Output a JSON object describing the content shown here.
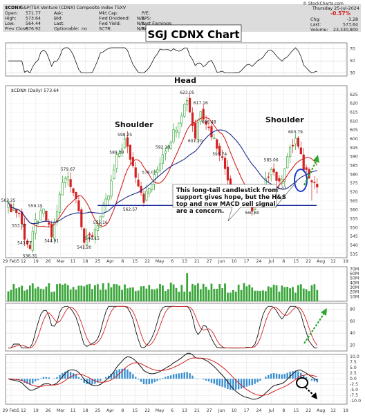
{
  "header": {
    "symbol": "$CDNX",
    "name": "S&P/TSX Venture (CDNX) Composite Index  TSXV",
    "watermark": "© StockCharts.com",
    "date": "Thursday 25-Jul-2024",
    "change_pct": "-0.57%",
    "fields": [
      {
        "label": "Open:",
        "value": "571.77"
      },
      {
        "label": "High:",
        "value": "573.64"
      },
      {
        "label": "Low:",
        "value": "564.44"
      },
      {
        "label": "Prev Close:",
        "value": "576.92"
      }
    ],
    "fields2": [
      {
        "label": "Ask:",
        "value": ""
      },
      {
        "label": "Bid:",
        "value": ""
      },
      {
        "label": "Last:",
        "value": ""
      },
      {
        "label": "Optionable:",
        "value": "no"
      }
    ],
    "fields3": [
      {
        "label": "Mkt Cap:",
        "value": ""
      },
      {
        "label": "Fwd Dividend:",
        "value": "N/A"
      },
      {
        "label": "Fwd Yield:",
        "value": "N/A"
      },
      {
        "label": "SCTR:",
        "value": "N/A"
      }
    ],
    "fields4": [
      {
        "label": "P/E:",
        "value": ""
      },
      {
        "label": "EPS:",
        "value": ""
      },
      {
        "label": "Last Earnings:",
        "value": ""
      },
      {
        "label": "Next Earnings:",
        "value": ""
      }
    ],
    "right_fields": [
      {
        "label": "Chg:",
        "value": "-3.28"
      },
      {
        "label": "Last:",
        "value": "573.64"
      },
      {
        "label": "Volume:",
        "value": "23,330,800"
      }
    ]
  },
  "title": "SGJ CDNX Chart",
  "price_label": "$CDNX (Daily) 573.64",
  "annotation": "This long-tail candlestick from support gives hope, but the H&S top and new MACD sell signal are a concern.",
  "labels": {
    "head": "Head",
    "shoulder_left": "Shoulder",
    "shoulder_right": "Shoulder"
  },
  "colors": {
    "up": "#2a9d2a",
    "down": "#d42020",
    "ma_short": "#d42020",
    "ma_long": "#1a2a8a",
    "support": "#1a2a9a",
    "arrow": "#2aa82a",
    "histogram": "#3a8fd0",
    "macd": "#111111",
    "signal": "#d42020",
    "header_bg": "#d9d9d9"
  },
  "chart_data": [
    {
      "type": "candlestick",
      "name": "$CDNX (Daily)",
      "ylim": [
        533,
        630
      ],
      "y_ticks": [
        535,
        540,
        545,
        550,
        555,
        560,
        565,
        570,
        575,
        580,
        585,
        590,
        595,
        600,
        605,
        610,
        615,
        620,
        625
      ],
      "x_labels": [
        "29 Feb5",
        "12",
        "19",
        "26",
        "Mar",
        "11",
        "18",
        "25",
        "Apr",
        "8",
        "15",
        "22",
        "May",
        "6",
        "13",
        "21",
        "27",
        "Jun",
        "10",
        "17",
        "24",
        "Jul",
        "8",
        "15",
        "22",
        "Aug",
        "12",
        "19"
      ],
      "annotated_values": [
        {
          "label": "562.25",
          "value": 562.25
        },
        {
          "label": "553.37",
          "value": 553.37
        },
        {
          "label": "543.77",
          "value": 543.77
        },
        {
          "label": "536.31",
          "value": 536.31
        },
        {
          "label": "559.15",
          "value": 559.15
        },
        {
          "label": "544.91",
          "value": 544.91
        },
        {
          "label": "579.67",
          "value": 579.67
        },
        {
          "label": "541.20",
          "value": 541.2
        },
        {
          "label": "546.15",
          "value": 546.15
        },
        {
          "label": "555.16",
          "value": 555.16
        },
        {
          "label": "589.30",
          "value": 589.3
        },
        {
          "label": "599.25",
          "value": 599.25
        },
        {
          "label": "562.57",
          "value": 562.57
        },
        {
          "label": "578.07",
          "value": 578.07
        },
        {
          "label": "592.16",
          "value": 592.16
        },
        {
          "label": "623.05",
          "value": 623.05
        },
        {
          "label": "601.20",
          "value": 601.2
        },
        {
          "label": "617.16",
          "value": 617.16
        },
        {
          "label": "606.48",
          "value": 606.48
        },
        {
          "label": "593.74",
          "value": 593.74
        },
        {
          "label": "560.60",
          "value": 560.6
        },
        {
          "label": "585.06",
          "value": 585.06
        },
        {
          "label": "574.47",
          "value": 574.47
        },
        {
          "label": "600.79",
          "value": 600.79
        }
      ],
      "support_level": 562.5
    },
    {
      "type": "bar",
      "name": "Volume",
      "y_ticks": [
        "70M",
        "60M",
        "50M",
        "40M",
        "30M",
        "20M",
        "10M"
      ],
      "ylim": [
        0,
        75
      ]
    },
    {
      "type": "line",
      "name": "Oscillator",
      "y_ticks": [
        80,
        60,
        40,
        20
      ],
      "ylim": [
        10,
        90
      ]
    },
    {
      "type": "line",
      "name": "MACD",
      "y_ticks": [
        10.0,
        7.5,
        5.0,
        2.5,
        0.0,
        -2.5,
        -5.0,
        -7.5,
        -10.0
      ],
      "ylim": [
        -11.5,
        11
      ]
    }
  ]
}
